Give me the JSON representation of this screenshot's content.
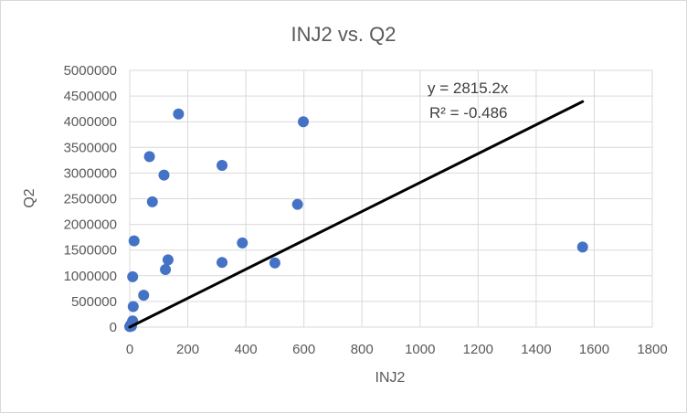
{
  "chart_data": {
    "type": "scatter",
    "title": "INJ2 vs. Q2",
    "xlabel": "INJ2",
    "ylabel": "Q2",
    "xlim": [
      0,
      1800
    ],
    "ylim": [
      0,
      5000000
    ],
    "x_ticks": [
      "0",
      "200",
      "400",
      "600",
      "800",
      "1000",
      "1200",
      "1400",
      "1600",
      "1800"
    ],
    "y_ticks": [
      "0",
      "500000",
      "1000000",
      "1500000",
      "2000000",
      "2500000",
      "3000000",
      "3500000",
      "4000000",
      "4500000",
      "5000000"
    ],
    "grid": true,
    "marker_color": "#4472c4",
    "trendline_color": "#000000",
    "trendline": {
      "slope": 2815.2,
      "x_range": [
        0,
        1560
      ],
      "equation": "y = 2815.2x",
      "r_squared": "R² = -0.486"
    },
    "points": [
      {
        "x": 0,
        "y": 10000
      },
      {
        "x": 2,
        "y": 30000
      },
      {
        "x": 4,
        "y": 50000
      },
      {
        "x": 6,
        "y": 20000
      },
      {
        "x": 8,
        "y": 80000
      },
      {
        "x": 10,
        "y": 120000
      },
      {
        "x": 12,
        "y": 400000
      },
      {
        "x": 10,
        "y": 980000
      },
      {
        "x": 15,
        "y": 1680000
      },
      {
        "x": 48,
        "y": 620000
      },
      {
        "x": 68,
        "y": 3320000
      },
      {
        "x": 78,
        "y": 2440000
      },
      {
        "x": 118,
        "y": 2960000
      },
      {
        "x": 123,
        "y": 1120000
      },
      {
        "x": 132,
        "y": 1310000
      },
      {
        "x": 168,
        "y": 4150000
      },
      {
        "x": 318,
        "y": 3150000
      },
      {
        "x": 318,
        "y": 1260000
      },
      {
        "x": 388,
        "y": 1640000
      },
      {
        "x": 500,
        "y": 1250000
      },
      {
        "x": 578,
        "y": 2390000
      },
      {
        "x": 598,
        "y": 4000000
      },
      {
        "x": 1560,
        "y": 1560000
      }
    ]
  }
}
